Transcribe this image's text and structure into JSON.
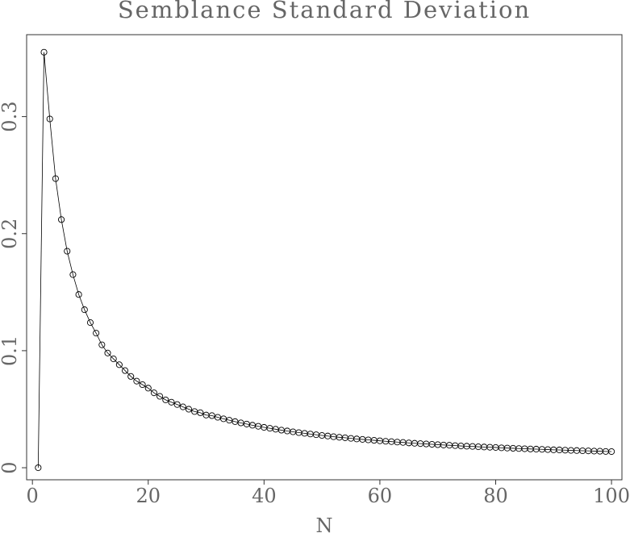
{
  "chart_data": {
    "type": "line",
    "title": "Semblance Standard Deviation",
    "x_label": "N",
    "x": [
      1,
      2,
      3,
      4,
      5,
      6,
      7,
      8,
      9,
      10,
      11,
      12,
      13,
      14,
      15,
      16,
      17,
      18,
      19,
      20,
      21,
      22,
      23,
      24,
      25,
      26,
      27,
      28,
      29,
      30,
      31,
      32,
      33,
      34,
      35,
      36,
      37,
      38,
      39,
      40,
      41,
      42,
      43,
      44,
      45,
      46,
      47,
      48,
      49,
      50,
      51,
      52,
      53,
      54,
      55,
      56,
      57,
      58,
      59,
      60,
      61,
      62,
      63,
      64,
      65,
      66,
      67,
      68,
      69,
      70,
      71,
      72,
      73,
      74,
      75,
      76,
      77,
      78,
      79,
      80,
      81,
      82,
      83,
      84,
      85,
      86,
      87,
      88,
      89,
      90,
      91,
      92,
      93,
      94,
      95,
      96,
      97,
      98,
      99,
      100
    ],
    "values": [
      0,
      0.355,
      0.298,
      0.247,
      0.212,
      0.185,
      0.165,
      0.148,
      0.135,
      0.124,
      0.115,
      0.105,
      0.098,
      0.093,
      0.088,
      0.083,
      0.078,
      0.074,
      0.071,
      0.068,
      0.064,
      0.061,
      0.058,
      0.056,
      0.054,
      0.052,
      0.05,
      0.048,
      0.047,
      0.045,
      0.0445,
      0.0431,
      0.0418,
      0.0406,
      0.0394,
      0.0383,
      0.0373,
      0.0363,
      0.0354,
      0.0345,
      0.0337,
      0.0329,
      0.0321,
      0.0314,
      0.0307,
      0.03,
      0.0294,
      0.0288,
      0.0282,
      0.0276,
      0.0271,
      0.0265,
      0.026,
      0.0256,
      0.0251,
      0.0246,
      0.0242,
      0.0238,
      0.0234,
      0.023,
      0.0226,
      0.0223,
      0.0219,
      0.0216,
      0.0212,
      0.0209,
      0.0206,
      0.0203,
      0.02,
      0.0197,
      0.0194,
      0.0192,
      0.0189,
      0.0186,
      0.0184,
      0.0182,
      0.0179,
      0.0177,
      0.0175,
      0.0173,
      0.017,
      0.0168,
      0.0166,
      0.0164,
      0.0162,
      0.016,
      0.0159,
      0.0157,
      0.0155,
      0.0153,
      0.0152,
      0.015,
      0.0148,
      0.0147,
      0.0145,
      0.0144,
      0.0142,
      0.0141,
      0.0139,
      0.0138
    ],
    "color": "#000000",
    "xlim": [
      -1,
      101.8
    ],
    "xticks": [
      0,
      20,
      40,
      60,
      80,
      100
    ],
    "ylim": [
      -0.0103,
      0.37
    ],
    "yticks": [
      0,
      0.1,
      0.2,
      0.3
    ]
  }
}
